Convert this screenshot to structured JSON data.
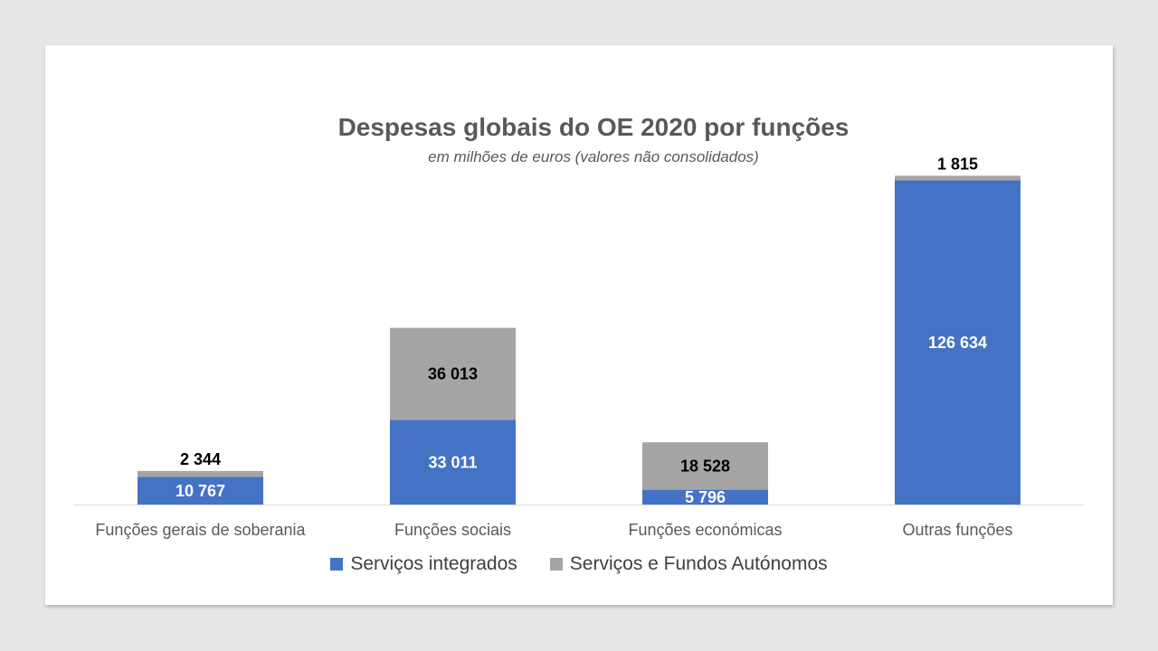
{
  "chart_data": {
    "type": "bar",
    "stacked": true,
    "title": "Despesas globais do OE 2020 por funções",
    "subtitle": "em milhões de euros (valores não consolidados)",
    "categories": [
      "Funções gerais de soberania",
      "Funções sociais",
      "Funções económicas",
      "Outras funções"
    ],
    "series": [
      {
        "name": "Serviços integrados",
        "color": "#4472c4",
        "values": [
          10767,
          33011,
          5796,
          126634
        ],
        "labels": [
          "10 767",
          "33 011",
          "5 796",
          "126 634"
        ]
      },
      {
        "name": "Serviços e Fundos Autónomos",
        "color": "#a5a5a5",
        "values": [
          2344,
          36013,
          18528,
          1815
        ],
        "labels": [
          "2 344",
          "36 013",
          "18 528",
          "1 815"
        ]
      }
    ],
    "ylim": [
      0,
      130000
    ],
    "grid": false,
    "legend_position": "bottom"
  }
}
